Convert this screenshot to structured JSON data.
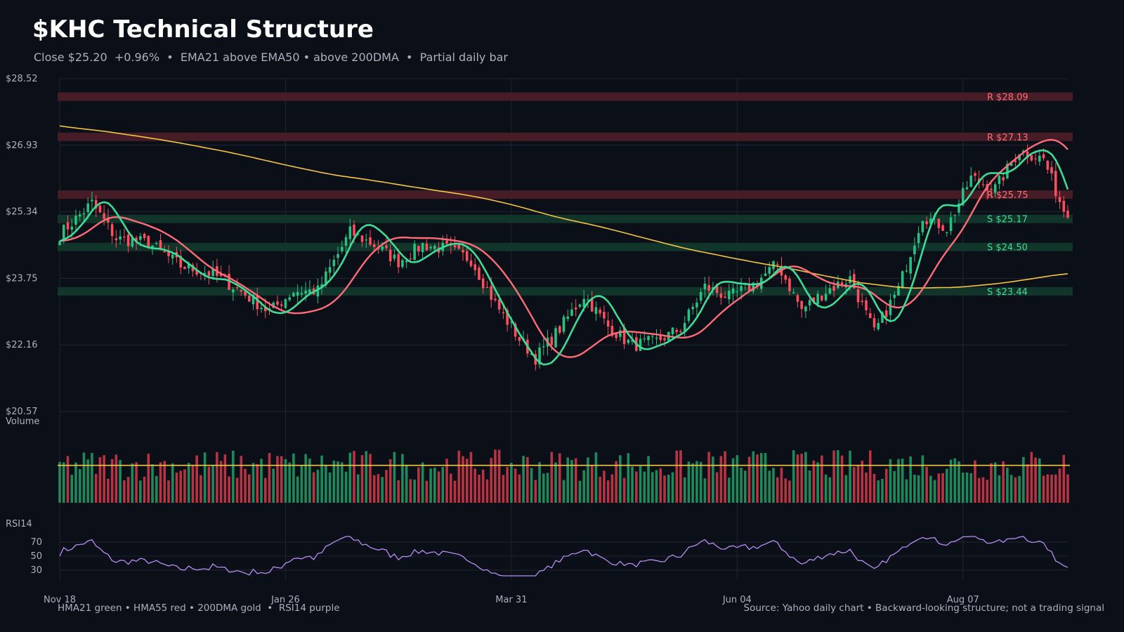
{
  "header": {
    "title": "$KHC Technical Structure",
    "subtitle": "Close $25.20  +0.96%  •  EMA21 above EMA50 • above 200DMA  •  Partial daily bar"
  },
  "footer": {
    "legend": "HMA21 green • HMA55 red • 200DMA gold  •  RSI14 purple",
    "source": "Source: Yahoo daily chart • Backward-looking structure; not a trading signal"
  },
  "colors": {
    "background": "#0b0f17",
    "grid": "#1f2633",
    "up": "#26c281",
    "down": "#ff4d5e",
    "hma21": "#3ddc97",
    "hma55": "#ff6b78",
    "dma200": "#f4c542",
    "rsi": "#b98cf5",
    "resistance_band": "#4a1f27",
    "support_band": "#12382b"
  },
  "chart_data": {
    "type": "candlestick",
    "ticker": "$KHC",
    "x_tick_labels": [
      "Nov 18",
      "Jan 26",
      "Mar 31",
      "Jun 04",
      "Aug 07"
    ],
    "x_tick_bar_index": [
      0,
      56,
      112,
      168,
      224
    ],
    "price_axis": {
      "ylim": [
        20.57,
        28.52
      ],
      "tick_labels": [
        "$28.52",
        "$26.93",
        "$25.34",
        "$23.75",
        "$22.16",
        "$20.57"
      ],
      "tick_values": [
        28.52,
        26.93,
        25.34,
        23.75,
        22.16,
        20.57
      ]
    },
    "levels": [
      {
        "label": "R $28.09",
        "value": 28.09,
        "kind": "resistance"
      },
      {
        "label": "R $27.13",
        "value": 27.13,
        "kind": "resistance"
      },
      {
        "label": "R $25.75",
        "value": 25.75,
        "kind": "resistance"
      },
      {
        "label": "S $25.17",
        "value": 25.17,
        "kind": "support"
      },
      {
        "label": "S $24.50",
        "value": 24.5,
        "kind": "support"
      },
      {
        "label": "S $23.44",
        "value": 23.44,
        "kind": "support"
      }
    ],
    "close_anchors": [
      [
        0,
        24.8
      ],
      [
        8,
        25.55
      ],
      [
        14,
        24.7
      ],
      [
        22,
        24.6
      ],
      [
        30,
        24.05
      ],
      [
        38,
        23.85
      ],
      [
        44,
        23.5
      ],
      [
        52,
        22.95
      ],
      [
        58,
        23.45
      ],
      [
        64,
        23.45
      ],
      [
        72,
        24.85
      ],
      [
        78,
        24.55
      ],
      [
        84,
        24.15
      ],
      [
        90,
        24.55
      ],
      [
        96,
        24.45
      ],
      [
        102,
        24.2
      ],
      [
        108,
        23.15
      ],
      [
        114,
        22.3
      ],
      [
        118,
        21.85
      ],
      [
        124,
        22.55
      ],
      [
        130,
        23.35
      ],
      [
        136,
        22.6
      ],
      [
        142,
        22.15
      ],
      [
        148,
        22.25
      ],
      [
        154,
        22.55
      ],
      [
        160,
        23.55
      ],
      [
        166,
        23.3
      ],
      [
        172,
        23.6
      ],
      [
        178,
        24.1
      ],
      [
        184,
        23.0
      ],
      [
        190,
        23.45
      ],
      [
        196,
        23.75
      ],
      [
        202,
        22.45
      ],
      [
        208,
        23.5
      ],
      [
        214,
        25.25
      ],
      [
        220,
        24.95
      ],
      [
        226,
        26.15
      ],
      [
        232,
        25.9
      ],
      [
        238,
        26.8
      ],
      [
        244,
        26.6
      ],
      [
        248,
        25.6
      ],
      [
        250,
        25.2
      ]
    ],
    "bar_count": 251,
    "last_close": 25.2,
    "change_pct": 0.96,
    "volume_panel": {
      "label": "Volume",
      "average_line": true
    },
    "rsi_panel": {
      "label": "RSI14",
      "tick_labels": [
        "70",
        "50",
        "30"
      ],
      "tick_values": [
        70,
        50,
        30
      ],
      "ylim": [
        20,
        80
      ]
    },
    "series": [
      {
        "name": "HMA21",
        "kind": "hull_ma",
        "period": 21
      },
      {
        "name": "HMA55",
        "kind": "hull_ma",
        "period": 55
      },
      {
        "name": "200DMA",
        "kind": "sma",
        "period": 200
      },
      {
        "name": "RSI14",
        "kind": "rsi",
        "period": 14
      }
    ]
  }
}
